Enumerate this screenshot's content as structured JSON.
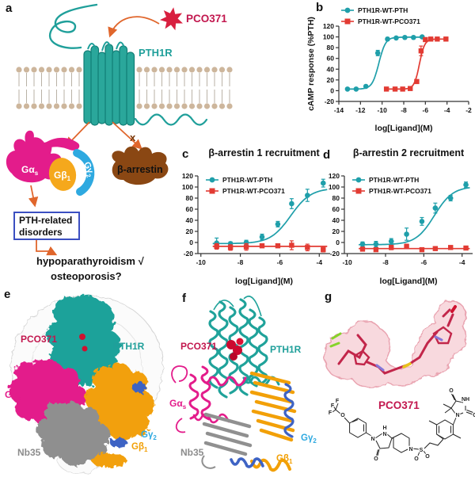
{
  "figure": {
    "panel_labels": {
      "a": "a",
      "b": "b",
      "c": "c",
      "d": "d",
      "e": "e",
      "f": "f",
      "g": "g"
    }
  },
  "colors": {
    "teal": "#1f9f9a",
    "teal_series": "#1f9faa",
    "red_series": "#e23b33",
    "crimson": "#c2174e",
    "star_red": "#d81f3f",
    "magenta": "#e31c8b",
    "orange": "#f2a007",
    "blue": "#2ea9e0",
    "ribbon_blue": "#3e63c4",
    "brown": "#8a4713",
    "arrow_orange": "#e0662c",
    "membrane_tan": "#cdb69c",
    "box_blue": "#3b4fc1",
    "gray": "#8f8f8f"
  },
  "panel_a": {
    "ligand_label": "PCO371",
    "receptor_label": "PTH1R",
    "g_alpha": {
      "main": "Gα",
      "sub": "s"
    },
    "g_beta": {
      "main": "Gβ",
      "sub": "1"
    },
    "g_gamma": {
      "main": "Gγ",
      "sub": "2"
    },
    "arrestin_label": "β-arrestin",
    "x_mark": "x",
    "disorders_box_line1": "PTH-related",
    "disorders_box_line2": "disorders",
    "outcome_line1": "hypoparathyroidism √",
    "outcome_line2": "osteoporosis?"
  },
  "panel_e": {
    "ligand_label": "PCO371",
    "receptor_label": "PTH1R",
    "g_alpha": {
      "main": "Gα",
      "sub": "s"
    },
    "g_beta": {
      "main": "Gβ",
      "sub": "1"
    },
    "g_gamma": {
      "main": "Gγ",
      "sub": "2"
    },
    "nb35_label": "Nb35"
  },
  "panel_f": {
    "ligand_label": "PCO371",
    "receptor_label": "PTH1R",
    "g_alpha": {
      "main": "Gα",
      "sub": "s"
    },
    "g_beta": {
      "main": "Gβ",
      "sub": "1"
    },
    "g_gamma": {
      "main": "Gγ",
      "sub": "2"
    },
    "nb35_label": "Nb35"
  },
  "panel_g": {
    "ligand_label": "PCO371",
    "atoms": [
      "F",
      "F",
      "F",
      "O",
      "H",
      "N",
      "N",
      "O",
      "N",
      "S",
      "O",
      "O",
      "N",
      "NH",
      "O",
      "O"
    ]
  },
  "chart_data": [
    {
      "id": "b",
      "type": "scatter",
      "panel_letter": "b",
      "title": null,
      "xlabel": "log[Ligand](M)",
      "ylabel": "cAMP response (%PTH)",
      "xlim": [
        -14,
        -2
      ],
      "xticks": [
        -14,
        -12,
        -10,
        -8,
        -6,
        -4,
        -2
      ],
      "ylim": [
        -20,
        120
      ],
      "yticks": [
        -20,
        0,
        20,
        40,
        60,
        80,
        100,
        120
      ],
      "legend_position": "top-left",
      "grid": false,
      "series": [
        {
          "name": "PTH1R-WT-PTH",
          "color": "#1f9faa",
          "marker": "circle",
          "x": [
            -13.2,
            -12.4,
            -11.5,
            -10.4,
            -9.5,
            -8.7,
            -7.9,
            -7.1,
            -6.3
          ],
          "y": [
            3,
            3,
            8,
            70,
            96,
            98,
            99,
            99,
            100
          ],
          "err": [
            2,
            2,
            2,
            5,
            3,
            2,
            2,
            2,
            2
          ],
          "fit": {
            "bottom": 3,
            "top": 99.5,
            "logec50": -10.3,
            "hill": 1.4
          }
        },
        {
          "name": "PTH1R-WT-PCO371",
          "color": "#e23b33",
          "marker": "square",
          "x": [
            -9.6,
            -8.8,
            -8.1,
            -7.4,
            -6.8,
            -6.4,
            -6.0,
            -5.5,
            -4.9,
            -4.1
          ],
          "y": [
            3,
            3,
            3,
            4,
            17,
            74,
            95,
            96,
            96,
            96
          ],
          "err": [
            2,
            2,
            2,
            2,
            3,
            9,
            3,
            2,
            2,
            2
          ],
          "fit": {
            "bottom": 3,
            "top": 96,
            "logec50": -6.55,
            "hill": 1.8
          }
        }
      ]
    },
    {
      "id": "c",
      "type": "scatter",
      "panel_letter": "c",
      "title": "β-arrestin 1 recruitment",
      "xlabel": "log[Ligand](M)",
      "ylabel": "Response (%PTH)",
      "xlim": [
        -10.15,
        -3.45
      ],
      "xticks": [
        -10,
        -8,
        -6,
        -4
      ],
      "ylim": [
        -20,
        120
      ],
      "yticks": [
        -20,
        0,
        20,
        40,
        60,
        80,
        100,
        120
      ],
      "legend_position": "top-left",
      "grid": false,
      "series": [
        {
          "name": "PTH1R-WT-PTH",
          "color": "#1f9faa",
          "marker": "circle",
          "x": [
            -9.2,
            -8.5,
            -7.7,
            -6.9,
            -6.1,
            -5.4,
            -4.6,
            -3.8
          ],
          "y": [
            -1,
            -2,
            0,
            10,
            33,
            70,
            85,
            107
          ],
          "err": [
            9,
            3,
            4,
            5,
            5,
            9,
            11,
            7
          ],
          "fit": {
            "bottom": -2,
            "top": 98,
            "logec50": -5.45,
            "hill": 0.85
          }
        },
        {
          "name": "PTH1R-WT-PCO371",
          "color": "#e23b33",
          "marker": "square",
          "x": [
            -9.2,
            -8.5,
            -7.7,
            -6.9,
            -6.1,
            -5.4,
            -4.6,
            -3.8
          ],
          "y": [
            -7,
            -9,
            -8,
            -6,
            -6,
            -5,
            -9,
            -13
          ],
          "err": [
            5,
            5,
            6,
            3,
            3,
            8,
            6,
            4
          ],
          "fit": {
            "bottom": -7,
            "top": -7,
            "logec50": -6,
            "hill": 1
          }
        }
      ]
    },
    {
      "id": "d",
      "type": "scatter",
      "panel_letter": "d",
      "title": "β-arrestin 2 recruitment",
      "xlabel": "log[Ligand](M)",
      "ylabel": "Response (%PTH)",
      "xlim": [
        -10.15,
        -3.45
      ],
      "xticks": [
        -10,
        -8,
        -6,
        -4
      ],
      "ylim": [
        -20,
        120
      ],
      "yticks": [
        -20,
        0,
        20,
        40,
        60,
        80,
        100,
        120
      ],
      "legend_position": "top-left",
      "grid": false,
      "series": [
        {
          "name": "PTH1R-WT-PTH",
          "color": "#1f9faa",
          "marker": "circle",
          "x": [
            -9.2,
            -8.5,
            -7.7,
            -6.9,
            -6.1,
            -5.4,
            -4.6,
            -3.8
          ],
          "y": [
            -3,
            -3,
            2,
            15,
            38,
            62,
            80,
            104
          ],
          "err": [
            4,
            5,
            5,
            11,
            7,
            9,
            5,
            5
          ],
          "fit": {
            "bottom": -4,
            "top": 101,
            "logec50": -5.45,
            "hill": 0.9
          }
        },
        {
          "name": "PTH1R-WT-PCO371",
          "color": "#e23b33",
          "marker": "square",
          "x": [
            -9.2,
            -8.5,
            -7.7,
            -6.9,
            -6.1,
            -5.4,
            -4.6,
            -3.8
          ],
          "y": [
            -12,
            -13,
            -9,
            -7,
            -13,
            -11,
            -9,
            -10
          ],
          "err": [
            3,
            3,
            4,
            4,
            3,
            3,
            3,
            3
          ],
          "fit": {
            "bottom": -11,
            "top": -11,
            "logec50": -6,
            "hill": 1
          }
        }
      ]
    }
  ]
}
